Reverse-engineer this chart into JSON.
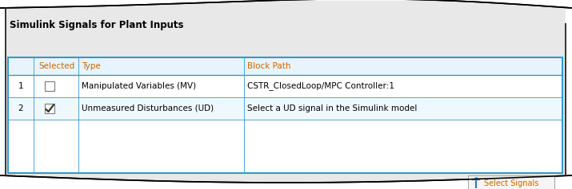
{
  "title": "Simulink Signals for Plant Inputs",
  "bg_outer": "#ffffff",
  "bg_panel": "#e8e8e8",
  "table_bg": "#ffffff",
  "table_border_color": "#3399cc",
  "header_text_color": "#cc6600",
  "header_row_bg": "#e8f4fb",
  "row_bg_odd": "#ffffff",
  "row_bg_even": "#f0f8ff",
  "col_headers": [
    "",
    "Selected",
    "Type",
    "Block Path"
  ],
  "rows": [
    {
      "num": "1",
      "checked": false,
      "type": "Manipulated Variables (MV)",
      "path": "CSTR_ClosedLoop/MPC Controller:1"
    },
    {
      "num": "2",
      "checked": true,
      "type": "Unmeasured Disturbances (UD)",
      "path": "Select a UD signal in the Simulink model"
    }
  ],
  "btn_label": "Select Signals",
  "title_fontsize": 8.5,
  "header_fontsize": 7.5,
  "cell_fontsize": 7.5,
  "panel_edge_color": "#333333",
  "wave_top_color": "#000000",
  "wave_bot_color": "#000000"
}
